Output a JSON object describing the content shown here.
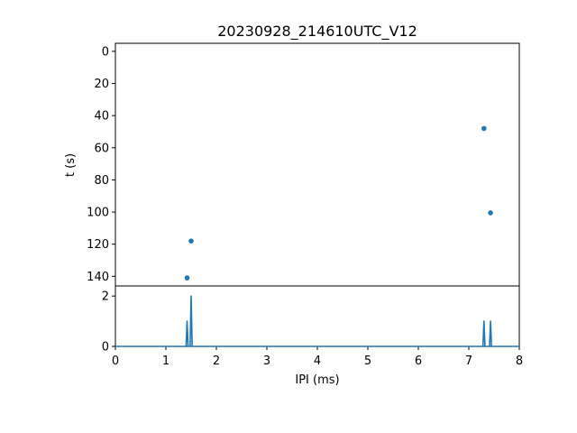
{
  "chart_data": [
    {
      "type": "scatter",
      "title": "20230928_214610UTC_V12",
      "xlabel": "",
      "ylabel": "t (s)",
      "xlim": [
        0,
        8
      ],
      "ylim": [
        146,
        -5
      ],
      "y_inverted": true,
      "y_ticks": [
        0,
        20,
        40,
        60,
        80,
        100,
        120,
        140
      ],
      "marker_color": "#1f77b4",
      "points": [
        {
          "x": 7.3,
          "y": 48
        },
        {
          "x": 7.43,
          "y": 100.5
        },
        {
          "x": 1.5,
          "y": 118
        },
        {
          "x": 1.42,
          "y": 141
        }
      ]
    },
    {
      "type": "line",
      "xlabel": "IPI (ms)",
      "ylabel": "",
      "xlim": [
        0,
        8
      ],
      "ylim": [
        0,
        2.4
      ],
      "x_ticks": [
        0,
        1,
        2,
        3,
        4,
        5,
        6,
        7,
        8
      ],
      "y_ticks": [
        0,
        2
      ],
      "line_color": "#1f77b4",
      "peaks": [
        {
          "x": 1.42,
          "height": 1
        },
        {
          "x": 1.5,
          "height": 2
        },
        {
          "x": 7.3,
          "height": 1
        },
        {
          "x": 7.43,
          "height": 1
        }
      ]
    }
  ]
}
